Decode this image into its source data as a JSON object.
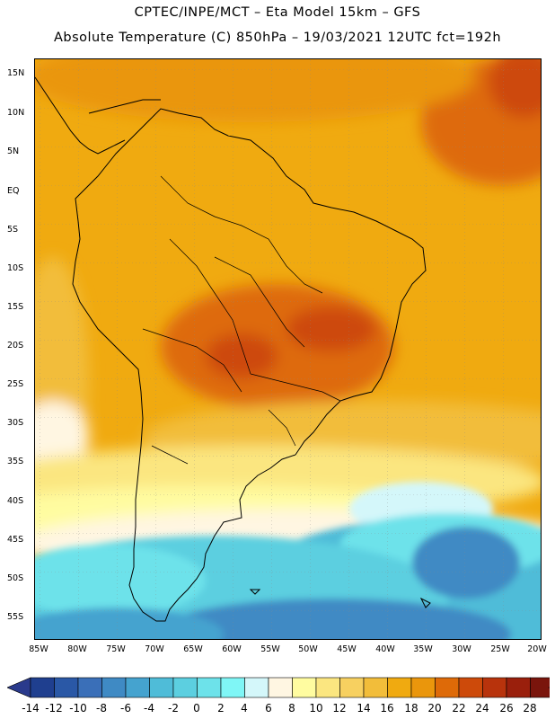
{
  "header": {
    "line1": "CPTEC/INPE/MCT –  Eta Model 15km – GFS",
    "line2": "Absolute Temperature (C) 850hPa – 19/03/2021 12UTC fct=192h"
  },
  "map": {
    "lat_labels": [
      "15N",
      "10N",
      "5N",
      "EQ",
      "5S",
      "10S",
      "15S",
      "20S",
      "25S",
      "30S",
      "35S",
      "40S",
      "45S",
      "50S",
      "55S"
    ],
    "lon_labels": [
      "85W",
      "80W",
      "75W",
      "70W",
      "65W",
      "60W",
      "55W",
      "50W",
      "45W",
      "40W",
      "35W",
      "30W",
      "25W",
      "20W"
    ]
  },
  "colorbar": {
    "labels": [
      "-14",
      "-12",
      "-10",
      "-8",
      "-6",
      "-4",
      "-2",
      "0",
      "2",
      "4",
      "6",
      "8",
      "10",
      "12",
      "14",
      "16",
      "18",
      "20",
      "22",
      "24",
      "26",
      "28"
    ],
    "colors": [
      "#1f3f8f",
      "#2a58a6",
      "#3a6fb8",
      "#3f8ac4",
      "#45a3cf",
      "#4fbcd8",
      "#5ccfe0",
      "#6de2ea",
      "#7ff6f6",
      "#d4f7fa",
      "#fff6e2",
      "#fffca0",
      "#fbe680",
      "#f7d060",
      "#f2bd3a",
      "#f0aa10",
      "#ea960c",
      "#de6a08",
      "#cd4a0a",
      "#b8330c",
      "#9a1f0c",
      "#7a150c",
      "#6a0a2a"
    ],
    "underflow_color": "#2a3a8c",
    "overflow_color": "#6a0a2a"
  },
  "colors": {
    "background": "#ffffff",
    "warm_ocean": "#f0aa10",
    "cool_ocean": "#45a3cf"
  }
}
